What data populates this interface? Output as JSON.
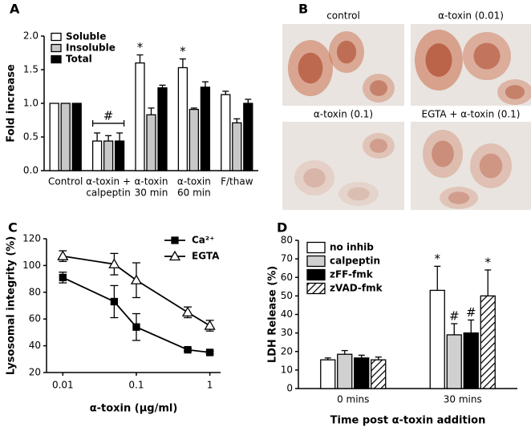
{
  "chart_data": [
    {
      "type": "bar",
      "panel_label": "A",
      "ylabel": "Fold increase",
      "categories": [
        [
          "Control"
        ],
        [
          "α-toxin +",
          "calpeptin"
        ],
        [
          "α-toxin",
          "30 min"
        ],
        [
          "α-toxin",
          "60 min"
        ],
        [
          "F/thaw"
        ]
      ],
      "series": [
        {
          "name": "Soluble",
          "color": "#ffffff",
          "values": [
            1.0,
            0.44,
            1.6,
            1.53,
            1.13
          ],
          "errors": [
            null,
            0.12,
            0.12,
            0.13,
            0.05
          ],
          "annotations": [
            null,
            null,
            "*",
            "*",
            null
          ]
        },
        {
          "name": "Insoluble",
          "color": "#c8c8c8",
          "values": [
            1.0,
            0.44,
            0.83,
            0.91,
            0.71
          ],
          "errors": [
            null,
            0.08,
            0.1,
            0.02,
            0.06
          ]
        },
        {
          "name": "Total",
          "color": "#000000",
          "values": [
            1.0,
            0.44,
            1.23,
            1.24,
            1.0
          ],
          "errors": [
            null,
            0.12,
            0.04,
            0.08,
            0.06
          ]
        }
      ],
      "group_annotations": [
        null,
        "#",
        null,
        null,
        null
      ],
      "ylim": [
        0,
        2.0
      ],
      "yticks": [
        {
          "value": 0,
          "label": "0.0"
        },
        {
          "value": 0.5,
          "label": "0.5"
        },
        {
          "value": 1.0,
          "label": "1.0"
        },
        {
          "value": 1.5,
          "label": "1.5"
        },
        {
          "value": 2.0,
          "label": "2.0"
        }
      ],
      "legend": "upper left"
    },
    {
      "type": "line",
      "panel_label": "C",
      "ylabel": "Lysosomal integrity (%)",
      "xlabel": "α-toxin (μg/ml)",
      "x": [
        0.01,
        0.05,
        0.1,
        0.5,
        1
      ],
      "series": [
        {
          "name": "Ca²⁺",
          "color": "#000000",
          "marker": "square",
          "filled": true,
          "values": [
            91,
            73,
            54,
            37,
            35
          ],
          "errors": [
            4,
            12,
            10,
            1,
            1
          ]
        },
        {
          "name": "EGTA",
          "color": "#000000",
          "marker": "triangle",
          "filled": false,
          "values": [
            107,
            101,
            89,
            65,
            55
          ],
          "errors": [
            4,
            8,
            13,
            4,
            4
          ]
        }
      ],
      "xscale": "log",
      "xlim": [
        0.006,
        1.4
      ],
      "xticks": [
        0.01,
        0.1,
        1
      ],
      "ylim": [
        20,
        120
      ],
      "yticks": [
        20,
        40,
        60,
        80,
        100,
        120
      ],
      "legend": "upper right"
    },
    {
      "type": "bar",
      "panel_label": "D",
      "ylabel": "LDH Release (%)",
      "xlabel": "Time post α-toxin addition",
      "categories": [
        "0 mins",
        "30 mins"
      ],
      "series": [
        {
          "name": "no inhib",
          "color": "#ffffff",
          "values": [
            15.5,
            53
          ],
          "errors": [
            1,
            13
          ],
          "annotations": [
            null,
            "*"
          ]
        },
        {
          "name": "calpeptin",
          "color": "#d0d0d0",
          "values": [
            18.5,
            29
          ],
          "errors": [
            2,
            6
          ],
          "annotations": [
            null,
            "#"
          ]
        },
        {
          "name": "zFF-fmk",
          "color": "#000000",
          "values": [
            16.5,
            30
          ],
          "errors": [
            1.5,
            7
          ],
          "annotations": [
            null,
            "#"
          ]
        },
        {
          "name": "zVAD-fmk",
          "color": "#ffffff",
          "hatch": true,
          "values": [
            15.5,
            50
          ],
          "errors": [
            1.5,
            14
          ],
          "annotations": [
            null,
            "*"
          ]
        }
      ],
      "ylim": [
        0,
        80
      ],
      "yticks": [
        0,
        10,
        20,
        30,
        40,
        50,
        60,
        70,
        80
      ],
      "legend": "upper left"
    }
  ],
  "images": {
    "panel_label": "B",
    "captions": [
      "control",
      "α-toxin (0.01)",
      "α-toxin (0.1)",
      "EGTA + α-toxin (0.1)"
    ]
  }
}
